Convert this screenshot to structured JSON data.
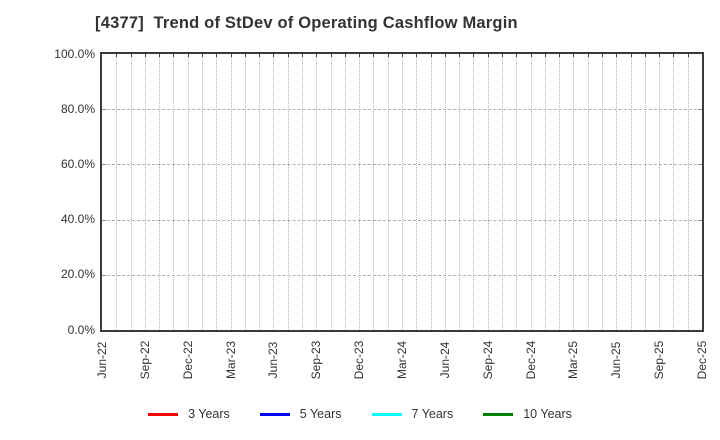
{
  "chart_data": {
    "type": "line",
    "title": "[4377]  Trend of StDev of Operating Cashflow Margin",
    "x_tick_labels": [
      "Jun-22",
      "Sep-22",
      "Dec-22",
      "Mar-23",
      "Jun-23",
      "Sep-23",
      "Dec-23",
      "Mar-24",
      "Jun-24",
      "Sep-24",
      "Dec-24",
      "Mar-25",
      "Jun-25",
      "Sep-25",
      "Dec-25"
    ],
    "x_months_total": 42,
    "x_minor_gridlines": "monthly",
    "y_tick_labels": [
      "0.0%",
      "20.0%",
      "40.0%",
      "60.0%",
      "80.0%",
      "100.0%"
    ],
    "y_tick_values": [
      0,
      20,
      40,
      60,
      80,
      100
    ],
    "ylim": [
      0,
      100
    ],
    "grid": true,
    "legend_position": "bottom",
    "series": [
      {
        "name": "3 Years",
        "color": "#ff0000",
        "values": []
      },
      {
        "name": "5 Years",
        "color": "#0000ff",
        "values": []
      },
      {
        "name": "7 Years",
        "color": "#00ffff",
        "values": []
      },
      {
        "name": "10 Years",
        "color": "#008000",
        "values": []
      }
    ]
  },
  "colors": {
    "background": "#ffffff",
    "axis_border": "#3a3a3a",
    "gridline": "#b4b4b4",
    "text": "#333333"
  }
}
